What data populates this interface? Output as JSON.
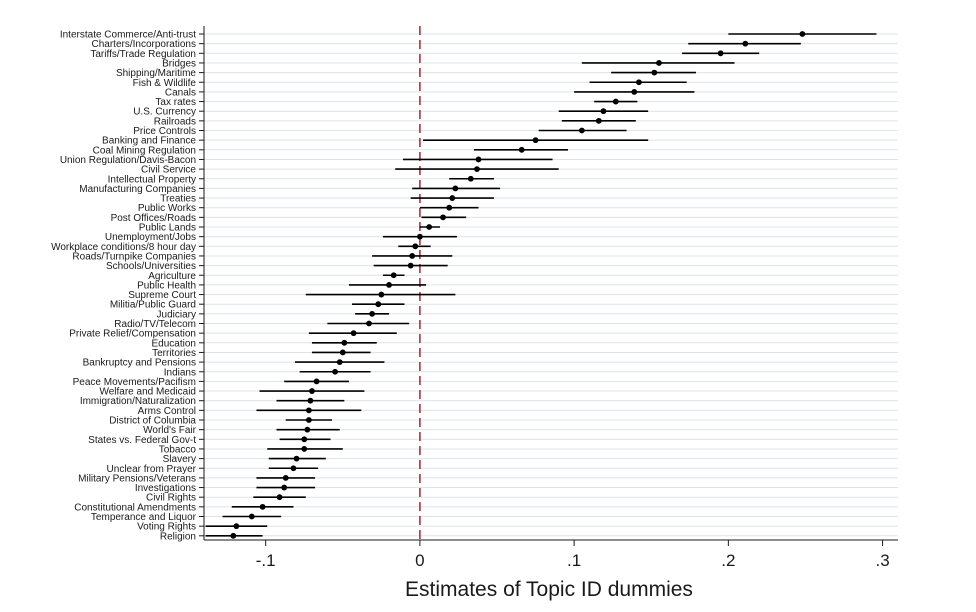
{
  "chart_data": {
    "type": "scatter",
    "subtype": "coefficient-plot-with-confidence-intervals",
    "title": "",
    "xlabel": "Estimates of Topic ID dummies",
    "ylabel": "",
    "xlim": [
      -0.14,
      0.31
    ],
    "xticks": [
      -0.1,
      0,
      0.1,
      0.2,
      0.3
    ],
    "xtick_labels": [
      "-.1",
      "0",
      ".1",
      ".2",
      ".3"
    ],
    "reference_line": {
      "x": 0,
      "style": "dashed",
      "color": "#b0303a"
    },
    "grid": "horizontal",
    "legend": "none",
    "colors": {
      "point": "#000000",
      "ci": "#000000",
      "grid": "#dbe4ea",
      "reference": "#b0303a"
    },
    "categories": [
      "Interstate Commerce/Anti-trust",
      "Charters/Incorporations",
      "Tariffs/Trade Regulation",
      "Bridges",
      "Shipping/Maritime",
      "Fish & Wildlife",
      "Canals",
      "Tax rates",
      "U.S. Currency",
      "Railroads",
      "Price Controls",
      "Banking and Finance",
      "Coal Mining Regulation",
      "Union Regulation/Davis-Bacon",
      "Civil Service",
      "Intellectual Property",
      "Manufacturing Companies",
      "Treaties",
      "Public Works",
      "Post Offices/Roads",
      "Public Lands",
      "Unemployment/Jobs",
      "Workplace conditions/8 hour day",
      "Roads/Turnpike Companies",
      "Schools/Universities",
      "Agriculture",
      "Public Health",
      "Supreme Court",
      "Militia/Public Guard",
      "Judiciary",
      "Radio/TV/Telecom",
      "Private Relief/Compensation",
      "Education",
      "Territories",
      "Bankruptcy and Pensions",
      "Indians",
      "Peace Movements/Pacifism",
      "Welfare and Medicaid",
      "Immigration/Naturalization",
      "Arms Control",
      "District of Columbia",
      "World's Fair",
      "States vs. Federal Gov-t",
      "Tobacco",
      "Slavery",
      "Unclear from Prayer",
      "Military Pensions/Veterans",
      "Investigations",
      "Civil Rights",
      "Constitutional Amendments",
      "Temperance and Liquor",
      "Voting Rights",
      "Religion"
    ],
    "estimates": [
      0.248,
      0.211,
      0.195,
      0.155,
      0.152,
      0.142,
      0.139,
      0.127,
      0.119,
      0.116,
      0.105,
      0.075,
      0.066,
      0.038,
      0.037,
      0.033,
      0.023,
      0.021,
      0.019,
      0.015,
      0.006,
      0.0,
      -0.003,
      -0.005,
      -0.006,
      -0.017,
      -0.02,
      -0.025,
      -0.027,
      -0.031,
      -0.033,
      -0.043,
      -0.049,
      -0.05,
      -0.052,
      -0.055,
      -0.067,
      -0.07,
      -0.071,
      -0.072,
      -0.072,
      -0.073,
      -0.075,
      -0.075,
      -0.08,
      -0.082,
      -0.087,
      -0.088,
      -0.091,
      -0.102,
      -0.109,
      -0.119,
      -0.121
    ],
    "ci_low": [
      0.2,
      0.174,
      0.17,
      0.105,
      0.124,
      0.11,
      0.1,
      0.113,
      0.09,
      0.092,
      0.077,
      0.002,
      0.035,
      -0.011,
      -0.016,
      0.019,
      -0.005,
      -0.006,
      0.0,
      0.001,
      0.0,
      -0.024,
      -0.014,
      -0.031,
      -0.03,
      -0.024,
      -0.046,
      -0.074,
      -0.044,
      -0.042,
      -0.06,
      -0.072,
      -0.07,
      -0.07,
      -0.081,
      -0.078,
      -0.088,
      -0.104,
      -0.093,
      -0.106,
      -0.087,
      -0.093,
      -0.091,
      -0.099,
      -0.098,
      -0.098,
      -0.106,
      -0.106,
      -0.108,
      -0.122,
      -0.128,
      -0.139,
      -0.139
    ],
    "ci_high": [
      0.296,
      0.247,
      0.22,
      0.204,
      0.179,
      0.173,
      0.178,
      0.141,
      0.148,
      0.14,
      0.134,
      0.148,
      0.096,
      0.086,
      0.09,
      0.048,
      0.052,
      0.048,
      0.038,
      0.03,
      0.013,
      0.024,
      0.007,
      0.021,
      0.018,
      -0.01,
      0.004,
      0.023,
      -0.01,
      -0.02,
      -0.007,
      -0.015,
      -0.028,
      -0.032,
      -0.023,
      -0.032,
      -0.046,
      -0.036,
      -0.049,
      -0.038,
      -0.057,
      -0.052,
      -0.058,
      -0.05,
      -0.061,
      -0.066,
      -0.068,
      -0.068,
      -0.074,
      -0.082,
      -0.09,
      -0.099,
      -0.102
    ]
  }
}
